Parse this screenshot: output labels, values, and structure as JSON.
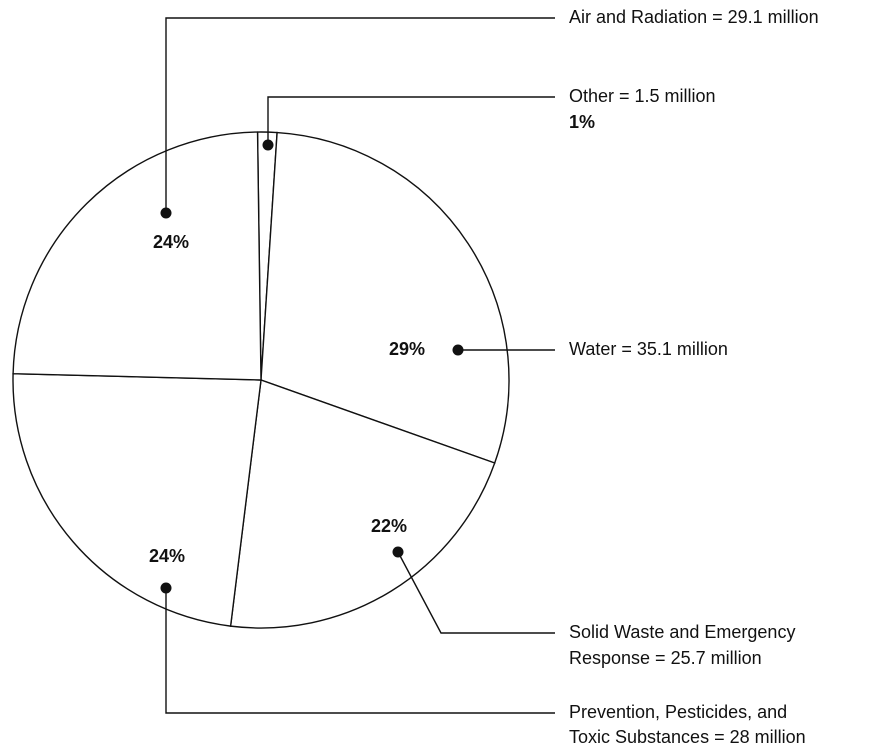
{
  "chart_data": {
    "type": "pie",
    "labels": [
      [
        "Other = 1.5 million"
      ],
      [
        "Water = 35.1 million"
      ],
      [
        "Solid Waste and Emergency",
        "Response = 25.7 million"
      ],
      [
        "Prevention, Pesticides, and",
        "Toxic Substances = 28 million"
      ],
      [
        "Air and Radiation = 29.1 million"
      ]
    ],
    "values": [
      1.5,
      35.1,
      25.7,
      28,
      29.1
    ],
    "percent_labels": [
      "1%",
      "29%",
      "22%",
      "24%",
      "24%"
    ],
    "color": "#ffffff"
  }
}
